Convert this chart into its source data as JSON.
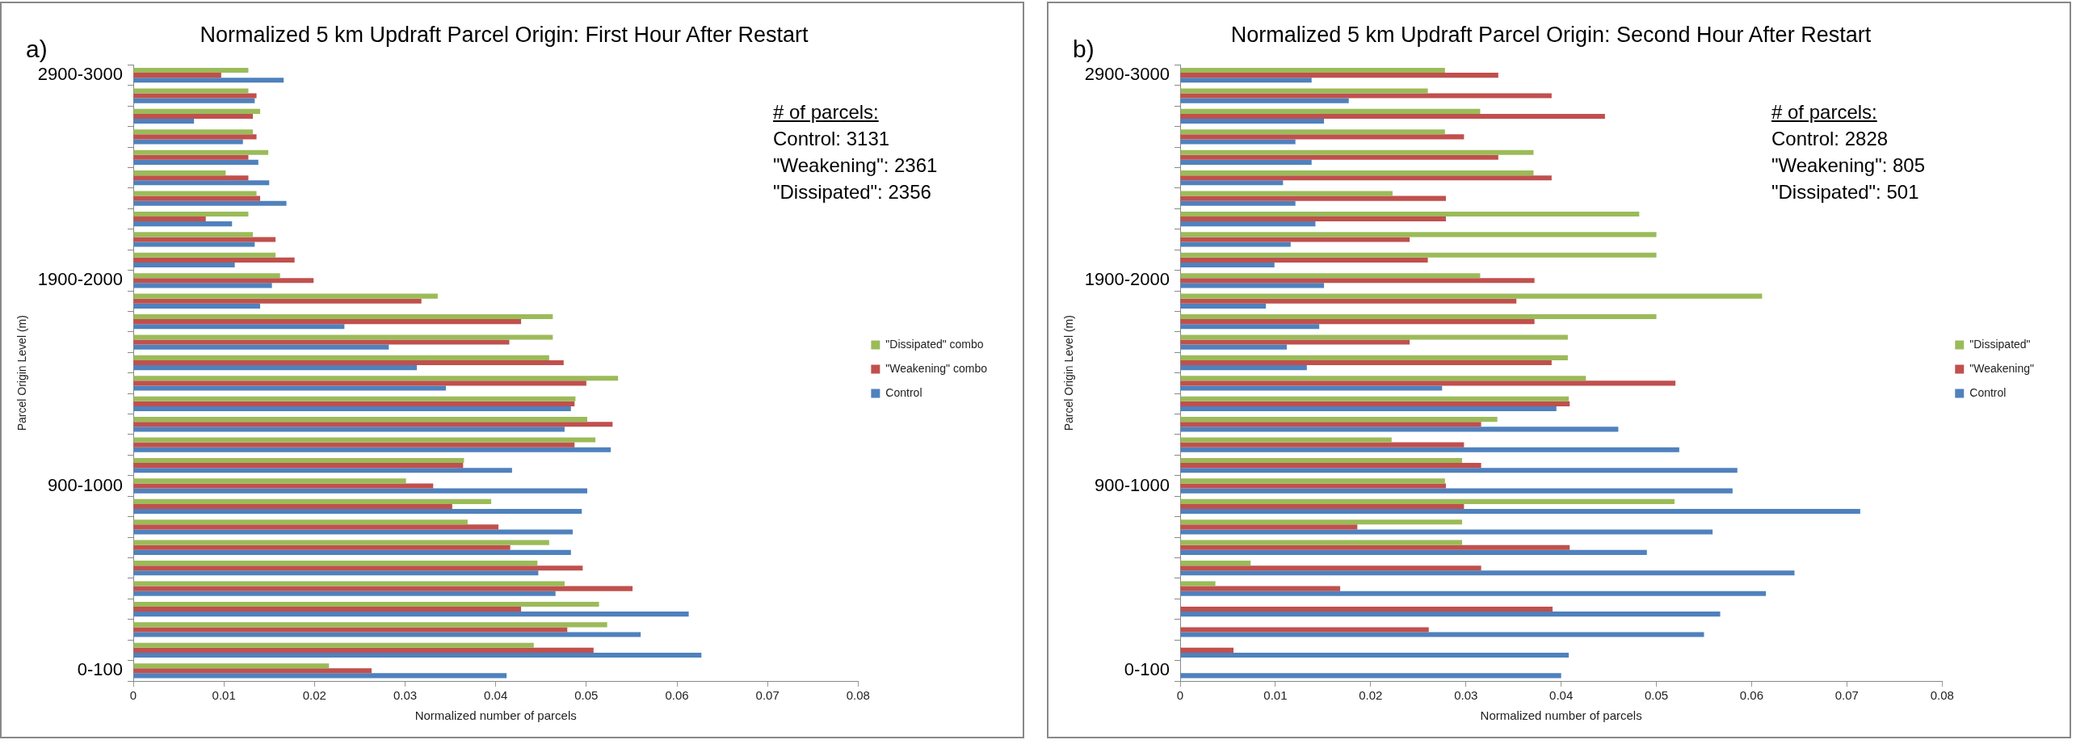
{
  "chart_data": [
    {
      "type": "bar",
      "orientation": "horizontal",
      "title": "Normalized 5 km Updraft Parcel Origin: First Hour After Restart",
      "xlabel": "Normalized number of parcels",
      "ylabel": "Parcel Origin Level (m)",
      "categories": [
        "2900-3000",
        null,
        null,
        null,
        null,
        null,
        null,
        null,
        null,
        null,
        "1900-2000",
        null,
        null,
        null,
        null,
        null,
        null,
        null,
        null,
        null,
        "900-1000",
        null,
        null,
        null,
        null,
        null,
        null,
        null,
        null,
        "0-100"
      ],
      "series": [
        {
          "name": "\"Dissipated\" combo",
          "color": "#9bbb59",
          "values": [
            0.0127,
            0.0127,
            0.014,
            0.0132,
            0.0149,
            0.0102,
            0.0136,
            0.0127,
            0.0132,
            0.0157,
            0.0162,
            0.0336,
            0.0463,
            0.0463,
            0.0459,
            0.0535,
            0.0488,
            0.0501,
            0.051,
            0.0365,
            0.0301,
            0.0395,
            0.0369,
            0.0459,
            0.0446,
            0.0476,
            0.0514,
            0.0523,
            0.0442,
            0.0216
          ]
        },
        {
          "name": "\"Weakening\" combo",
          "color": "#c0504d",
          "values": [
            0.0097,
            0.0136,
            0.0132,
            0.0136,
            0.0127,
            0.0127,
            0.014,
            0.008,
            0.0157,
            0.0178,
            0.0199,
            0.0318,
            0.0428,
            0.0415,
            0.0475,
            0.05,
            0.0487,
            0.0529,
            0.0487,
            0.0364,
            0.0331,
            0.0352,
            0.0403,
            0.0416,
            0.0496,
            0.0551,
            0.0428,
            0.0479,
            0.0508,
            0.0263
          ]
        },
        {
          "name": "Control",
          "color": "#4f81bd",
          "values": [
            0.0166,
            0.0134,
            0.0067,
            0.0121,
            0.0138,
            0.015,
            0.0169,
            0.0109,
            0.0134,
            0.0112,
            0.0153,
            0.014,
            0.0233,
            0.0282,
            0.0313,
            0.0345,
            0.0483,
            0.0476,
            0.0527,
            0.0418,
            0.0501,
            0.0495,
            0.0485,
            0.0483,
            0.0447,
            0.0466,
            0.0613,
            0.056,
            0.0627,
            0.0412
          ]
        }
      ],
      "xlim": [
        0,
        0.08
      ],
      "xticks": [
        0,
        0.01,
        0.02,
        0.03,
        0.04,
        0.05,
        0.06,
        0.07,
        0.08
      ],
      "grid": false,
      "legend": "right",
      "annotations": [
        "a)",
        "# of parcels:",
        "Control: 3131",
        "\"Weakening\": 2361",
        "\"Dissipated\": 2356"
      ]
    },
    {
      "type": "bar",
      "orientation": "horizontal",
      "title": "Normalized 5 km Updraft Parcel Origin: Second Hour After Restart",
      "xlabel": "Normalized number of parcels",
      "ylabel": "Parcel Origin Level (m)",
      "categories": [
        "2900-3000",
        null,
        null,
        null,
        null,
        null,
        null,
        null,
        null,
        null,
        "1900-2000",
        null,
        null,
        null,
        null,
        null,
        null,
        null,
        null,
        null,
        "900-1000",
        null,
        null,
        null,
        null,
        null,
        null,
        null,
        null,
        "0-100"
      ],
      "series": [
        {
          "name": "\"Dissipated\"",
          "color": "#9bbb59",
          "values": [
            0.0278,
            0.026,
            0.0315,
            0.0278,
            0.0371,
            0.0371,
            0.0223,
            0.0482,
            0.05,
            0.05,
            0.0315,
            0.0611,
            0.05,
            0.0407,
            0.0407,
            0.0426,
            0.0408,
            0.0333,
            0.0222,
            0.0296,
            0.0278,
            0.0519,
            0.0296,
            0.0296,
            0.0074,
            0.0037,
            0,
            0,
            0,
            0
          ]
        },
        {
          "name": "\"Weakening\"",
          "color": "#c0504d",
          "values": [
            0.0334,
            0.039,
            0.0446,
            0.0298,
            0.0334,
            0.039,
            0.0279,
            0.0279,
            0.0241,
            0.026,
            0.0372,
            0.0353,
            0.0372,
            0.0241,
            0.039,
            0.052,
            0.0409,
            0.0316,
            0.0298,
            0.0316,
            0.0279,
            0.0298,
            0.0186,
            0.0409,
            0.0316,
            0.0168,
            0.0391,
            0.0261,
            0.0056,
            0
          ]
        },
        {
          "name": "Control",
          "color": "#4f81bd",
          "values": [
            0.0138,
            0.0177,
            0.0151,
            0.0121,
            0.0138,
            0.0108,
            0.0121,
            0.0142,
            0.0116,
            0.0099,
            0.0151,
            0.009,
            0.0146,
            0.0112,
            0.0133,
            0.0275,
            0.0395,
            0.046,
            0.0524,
            0.0585,
            0.058,
            0.0714,
            0.0559,
            0.049,
            0.0645,
            0.0615,
            0.0567,
            0.055,
            0.0408,
            0.04
          ]
        }
      ],
      "xlim": [
        0,
        0.08
      ],
      "xticks": [
        0,
        0.01,
        0.02,
        0.03,
        0.04,
        0.05,
        0.06,
        0.07,
        0.08
      ],
      "grid": false,
      "legend": "right",
      "annotations": [
        "b)",
        "# of parcels:",
        "Control: 2828",
        "\"Weakening\": 805",
        "\"Dissipated\": 501"
      ]
    }
  ]
}
